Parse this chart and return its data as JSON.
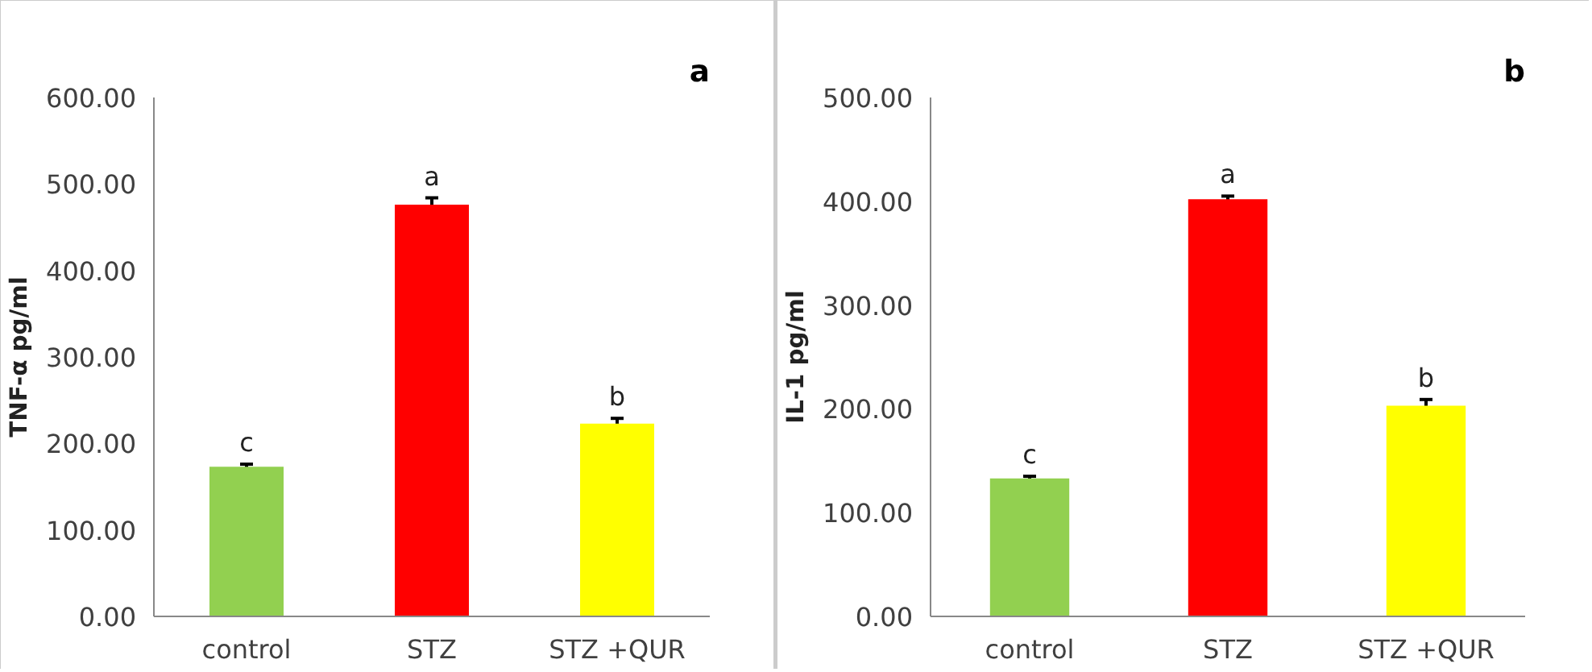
{
  "chart_data": [
    {
      "type": "bar",
      "ylabel": "TNF-α pg/ml",
      "categories": [
        "control",
        "STZ",
        "STZ +QUR"
      ],
      "values": [
        173,
        476,
        223
      ],
      "colors": [
        "#92d050",
        "#ff0000",
        "#ffff00"
      ],
      "errors": [
        3,
        8,
        6
      ],
      "ylim": [
        0,
        600
      ],
      "yticks": [
        {
          "value": 0,
          "label": "0.00"
        },
        {
          "value": 100,
          "label": "100.00"
        },
        {
          "value": 200,
          "label": "200.00"
        },
        {
          "value": 300,
          "label": "300.00"
        },
        {
          "value": 400,
          "label": "400.00"
        },
        {
          "value": 500,
          "label": "500.00"
        },
        {
          "value": 600,
          "label": "600.00"
        }
      ],
      "grid": false,
      "annotations": [
        "a",
        {
          "text": "c",
          "x": "control",
          "y": 176
        },
        {
          "text": "a",
          "x": "STZ",
          "y": 484
        },
        {
          "text": "b",
          "x": "STZ +QUR",
          "y": 229
        }
      ]
    },
    {
      "type": "bar",
      "ylabel": "IL-1 pg/ml",
      "categories": [
        "control",
        "STZ",
        "STZ +QUR"
      ],
      "values": [
        133,
        402,
        203
      ],
      "colors": [
        "#92d050",
        "#ff0000",
        "#ffff00"
      ],
      "errors": [
        2,
        3,
        6
      ],
      "ylim": [
        0,
        500
      ],
      "yticks": [
        {
          "value": 0,
          "label": "0.00"
        },
        {
          "value": 100,
          "label": "100.00"
        },
        {
          "value": 200,
          "label": "200.00"
        },
        {
          "value": 300,
          "label": "300.00"
        },
        {
          "value": 400,
          "label": "400.00"
        },
        {
          "value": 500,
          "label": "500.00"
        }
      ],
      "grid": false,
      "annotations": [
        "b",
        {
          "text": "c",
          "x": "control",
          "y": 135
        },
        {
          "text": "a",
          "x": "STZ",
          "y": 405
        },
        {
          "text": "b",
          "x": "STZ +QUR",
          "y": 209
        }
      ]
    }
  ]
}
